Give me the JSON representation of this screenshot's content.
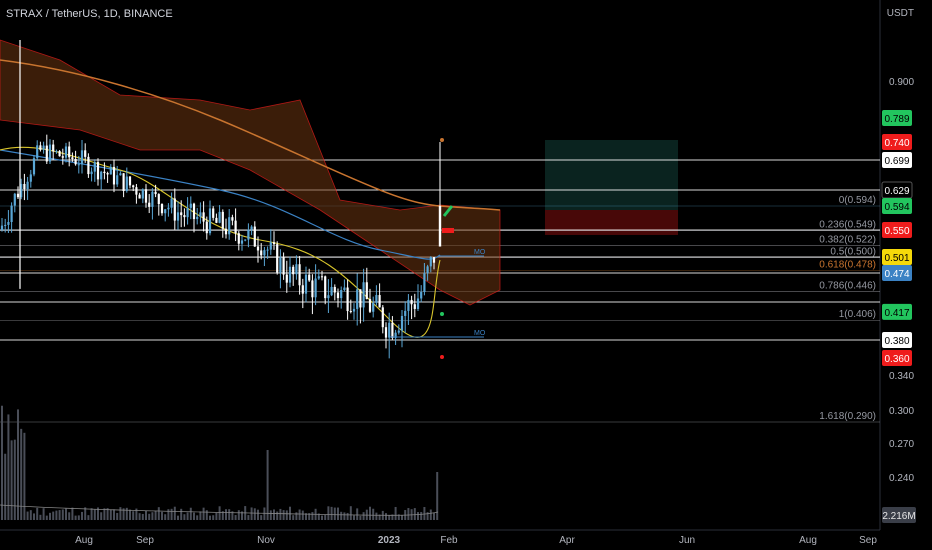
{
  "header": {
    "title": "STRAX / TetherUS, 1D, BINANCE",
    "currency": "USDT"
  },
  "colors": {
    "background": "#000000",
    "up": "#5aa7d6",
    "down": "#ffffff",
    "green": "#22c55e",
    "red": "#ef1c1c",
    "yellow": "#f5d90a",
    "blue": "#3b82c4",
    "orange": "#c8742f",
    "cloud": "#6b3410",
    "teal": "#2f9e8f"
  },
  "chart_data": {
    "type": "candlestick",
    "symbol": "STRAX / TetherUS",
    "interval": "1D",
    "exchange": "BINANCE",
    "ylim": [
      0.22,
      0.95
    ],
    "x_ticks": [
      "Aug",
      "Sep",
      "Nov",
      "2023",
      "Feb",
      "Apr",
      "Jun",
      "Aug",
      "Sep"
    ],
    "price_axis_labels": [
      "0.900",
      "0.340",
      "0.300",
      "0.270",
      "0.240"
    ],
    "price_tags": [
      {
        "value": "0.789",
        "color": "#22c55e"
      },
      {
        "value": "0.740",
        "color": "#ef1c1c"
      },
      {
        "value": "0.699",
        "color": "#ffffff"
      },
      {
        "value": "0.629",
        "color": "#000000"
      },
      {
        "value": "0.594",
        "color": "#22c55e"
      },
      {
        "value": "0.550",
        "color": "#ef1c1c"
      },
      {
        "value": "0.501",
        "color": "#f5d90a"
      },
      {
        "value": "0.474",
        "color": "#3b82c4"
      },
      {
        "value": "0.417",
        "color": "#22c55e"
      },
      {
        "value": "0.380",
        "color": "#ffffff"
      },
      {
        "value": "0.360",
        "color": "#ef1c1c"
      }
    ],
    "fib_levels": [
      {
        "label": "0(0.594)",
        "value": 0.594
      },
      {
        "label": "0.236(0.549)",
        "value": 0.549
      },
      {
        "label": "0.382(0.522)",
        "value": 0.522
      },
      {
        "label": "0.5(0.500)",
        "value": 0.5
      },
      {
        "label": "0.618(0.478)",
        "value": 0.478
      },
      {
        "label": "0.786(0.446)",
        "value": 0.446
      },
      {
        "label": "1(0.406)",
        "value": 0.406
      },
      {
        "label": "1.618(0.290)",
        "value": 0.29
      }
    ],
    "horizontal_lines": [
      0.699,
      0.629,
      0.55,
      0.501,
      0.474,
      0.43,
      0.38
    ],
    "annotations": [
      "MO",
      "MO"
    ],
    "volume_label": "2.216M",
    "last_price": 0.594
  }
}
